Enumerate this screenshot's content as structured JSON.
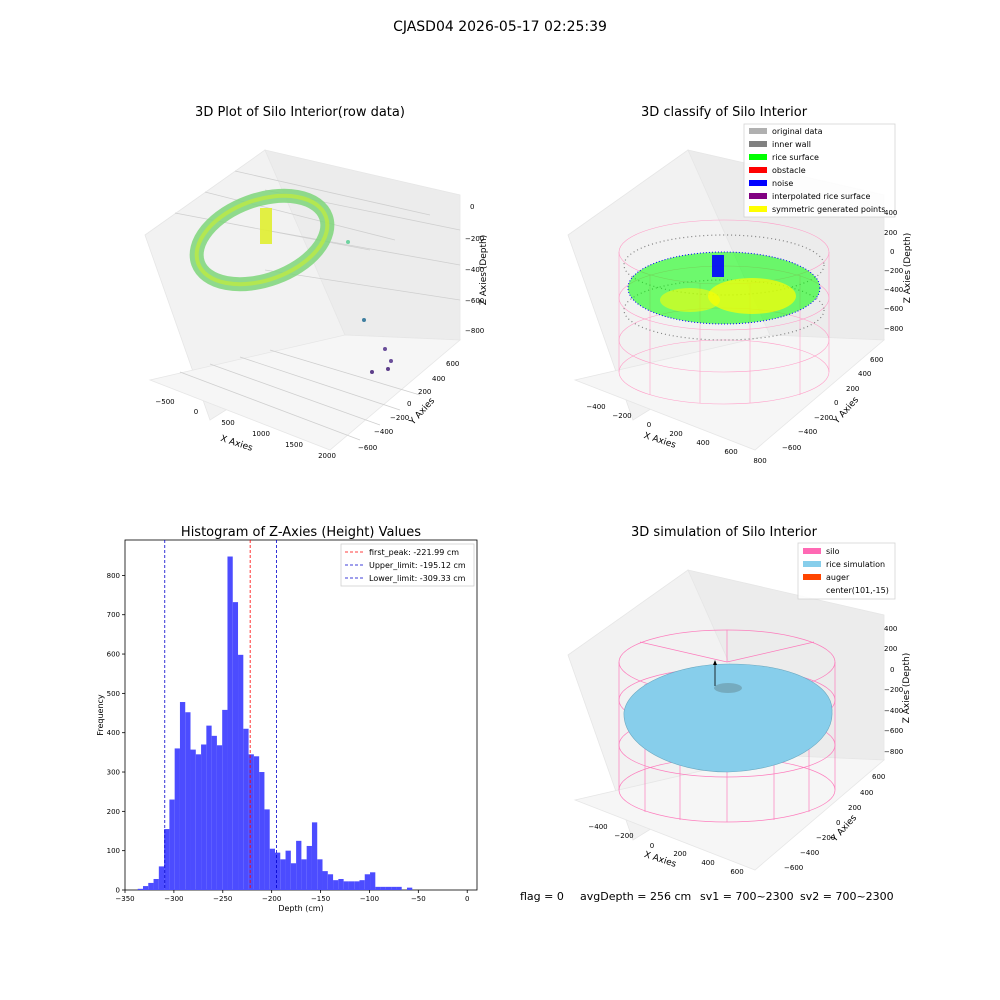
{
  "suptitle": "CJASD04 2026-05-17 02:25:39",
  "colors": {
    "hist_bar": "#4c4cff",
    "peak_line": "#ff0000",
    "limit_line": "#0000cc",
    "silo": "#ff69b4",
    "rice": "#87ceeb",
    "auger": "#ff4500",
    "rice_surface": "#00ff00",
    "noise": "#0000ff",
    "inner_wall": "#808080",
    "sym_points": "#ffff00"
  },
  "panels": {
    "raw": {
      "title": "3D Plot of Silo Interior(row data)",
      "xlabel": "X Axies",
      "ylabel": "Y Axies",
      "zlabel": "Z Axies (Depth)",
      "xticks": [
        "−500",
        "0",
        "500",
        "1000",
        "1500",
        "2000"
      ],
      "yticks": [
        "600",
        "400",
        "200",
        "0",
        "−200",
        "−400",
        "−600"
      ],
      "zticks": [
        "0",
        "−200",
        "−400",
        "−600",
        "−800"
      ]
    },
    "classify": {
      "title": "3D classify of Silo Interior",
      "xlabel": "X Axies",
      "ylabel": "Y Axies",
      "zlabel": "Z Axies (Depth)",
      "xticks": [
        "−400",
        "−200",
        "0",
        "200",
        "400",
        "600",
        "800"
      ],
      "yticks": [
        "600",
        "400",
        "200",
        "0",
        "−200",
        "−400",
        "−600"
      ],
      "zticks": [
        "400",
        "200",
        "0",
        "−200",
        "−400",
        "−600",
        "−800"
      ],
      "legend": [
        {
          "label": "original data",
          "color": "#b0b0b0"
        },
        {
          "label": "inner wall",
          "color": "#808080"
        },
        {
          "label": "rice surface",
          "color": "#00ff00"
        },
        {
          "label": "obstacle",
          "color": "#ff0000"
        },
        {
          "label": "noise",
          "color": "#0000ff"
        },
        {
          "label": "interpolated rice surface",
          "color": "#800080"
        },
        {
          "label": "symmetric generated points",
          "color": "#ffff00"
        }
      ]
    },
    "simulation": {
      "title": "3D simulation of Silo Interior",
      "xlabel": "X Axies",
      "ylabel": "Y Axies",
      "zlabel": "Z Axies (Depth)",
      "xticks": [
        "−400",
        "−200",
        "0",
        "200",
        "400",
        "600"
      ],
      "yticks": [
        "600",
        "400",
        "200",
        "0",
        "−200",
        "−400",
        "−600"
      ],
      "zticks": [
        "400",
        "200",
        "0",
        "−200",
        "−400",
        "−600",
        "−800"
      ],
      "legend": [
        {
          "label": "silo",
          "color": "#ff69b4"
        },
        {
          "label": "rice simulation",
          "color": "#87ceeb"
        },
        {
          "label": "auger",
          "color": "#ff4500"
        },
        {
          "label": "center(101,-15)",
          "color": ""
        }
      ]
    }
  },
  "footer": {
    "flag": "flag = 0",
    "avg": "avgDepth = 256 cm",
    "sv1": "sv1 = 700~2300",
    "sv2": "sv2 = 700~2300"
  },
  "chart_data": {
    "type": "bar",
    "title": "Histogram of Z-Axies (Height) Values",
    "xlabel": "Depth (cm)",
    "ylabel": "Frequency",
    "xlim": [
      -350,
      10
    ],
    "ylim": [
      0,
      890
    ],
    "xticks": [
      -350,
      -300,
      -250,
      -200,
      -150,
      -100,
      -50,
      0
    ],
    "yticks": [
      0,
      100,
      200,
      300,
      400,
      500,
      600,
      700,
      800
    ],
    "bin_width": 5.4,
    "bin_start": -337,
    "values": [
      3,
      10,
      18,
      28,
      60,
      155,
      230,
      360,
      478,
      452,
      357,
      345,
      370,
      418,
      392,
      368,
      458,
      848,
      732,
      598,
      410,
      345,
      340,
      300,
      205,
      105,
      95,
      78,
      100,
      68,
      125,
      78,
      112,
      172,
      78,
      48,
      40,
      25,
      28,
      22,
      22,
      22,
      25,
      40,
      45,
      8,
      8,
      8,
      8,
      8,
      0,
      6
    ],
    "vlines": [
      {
        "label": "first_peak: -221.99 cm",
        "x": -221.99,
        "style": "peak"
      },
      {
        "label": "Upper_limit: -195.12 cm",
        "x": -195.12,
        "style": "limit"
      },
      {
        "label": "Lower_limit: -309.33 cm",
        "x": -309.33,
        "style": "limit"
      }
    ]
  }
}
